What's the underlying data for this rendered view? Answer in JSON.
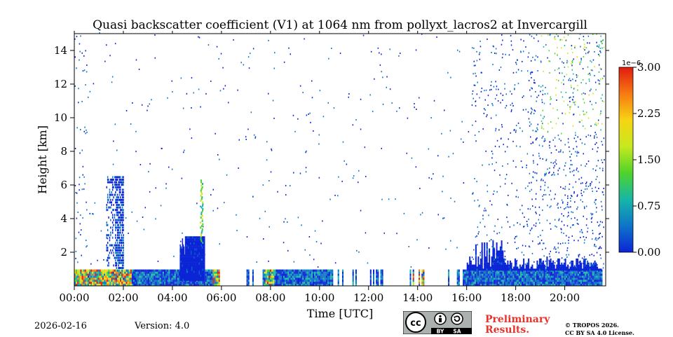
{
  "chart_data": {
    "type": "heatmap",
    "title": "Quasi backscatter coefficient (V1) at 1064 nm from pollyxt_lacros2 at Invercargill",
    "xlabel": "Time [UTC]",
    "ylabel": "Height [km]",
    "xlim_hours": [
      0,
      21.67
    ],
    "ylim_km": [
      0,
      15
    ],
    "x_ticks": [
      {
        "hour": 0,
        "label": "00:00"
      },
      {
        "hour": 2,
        "label": "02:00"
      },
      {
        "hour": 4,
        "label": "04:00"
      },
      {
        "hour": 6,
        "label": "06:00"
      },
      {
        "hour": 8,
        "label": "08:00"
      },
      {
        "hour": 10,
        "label": "10:00"
      },
      {
        "hour": 12,
        "label": "12:00"
      },
      {
        "hour": 14,
        "label": "14:00"
      },
      {
        "hour": 16,
        "label": "16:00"
      },
      {
        "hour": 18,
        "label": "18:00"
      },
      {
        "hour": 20,
        "label": "20:00"
      }
    ],
    "y_ticks": [
      {
        "km": 2,
        "label": "2"
      },
      {
        "km": 4,
        "label": "4"
      },
      {
        "km": 6,
        "label": "6"
      },
      {
        "km": 8,
        "label": "8"
      },
      {
        "km": 10,
        "label": "10"
      },
      {
        "km": 12,
        "label": "12"
      },
      {
        "km": 14,
        "label": "14"
      }
    ],
    "colorbar": {
      "range": [
        0.0,
        3.0
      ],
      "scale_label": "1e−6",
      "ticks": [
        {
          "value": 0.0,
          "label": "0.00"
        },
        {
          "value": 0.75,
          "label": "0.75"
        },
        {
          "value": 1.5,
          "label": "1.50"
        },
        {
          "value": 2.25,
          "label": "2.25"
        },
        {
          "value": 3.0,
          "label": "3.00"
        }
      ],
      "colormap": [
        "#0b24d6",
        "#0d75c8",
        "#17b6a8",
        "#4fd32b",
        "#c7e81f",
        "#f7d413",
        "#f77a13",
        "#e01b0f"
      ]
    },
    "features": [
      {
        "name": "boundary layer base",
        "t_start": 0.0,
        "t_end": 21.5,
        "h_bottom": 0.0,
        "h_top": 0.9,
        "intensity": "mixed 0.3-3.0"
      },
      {
        "name": "cloud column ~01:30",
        "t_start": 1.3,
        "t_end": 2.0,
        "h_bottom": 1.0,
        "h_top": 6.5,
        "intensity": "low 0.1-0.8"
      },
      {
        "name": "aerosol layer 04:20-05:20",
        "t_start": 4.3,
        "t_end": 5.3,
        "h_bottom": 0.3,
        "h_top": 3.0,
        "intensity": "low-mid"
      },
      {
        "name": "plume ~05:10",
        "t_start": 5.1,
        "t_end": 5.25,
        "h_bottom": 2.5,
        "h_top": 6.2,
        "intensity": "mid 1.0-2.0"
      },
      {
        "name": "night noise",
        "t_start": 16.0,
        "t_end": 21.6,
        "h_bottom": 1.0,
        "h_top": 15.0,
        "intensity": "scattered 0.2-1.5"
      }
    ],
    "grid": false,
    "legend": "colorbar right"
  },
  "footer": {
    "date": "2026-02-16",
    "version": "Version: 4.0",
    "license_badge": {
      "by": "BY",
      "sa": "SA"
    },
    "preliminary_line1": "Preliminary",
    "preliminary_line2": "Results.",
    "copyright_line1": "© TROPOS 2026.",
    "copyright_line2": "CC BY SA 4.0 License."
  }
}
